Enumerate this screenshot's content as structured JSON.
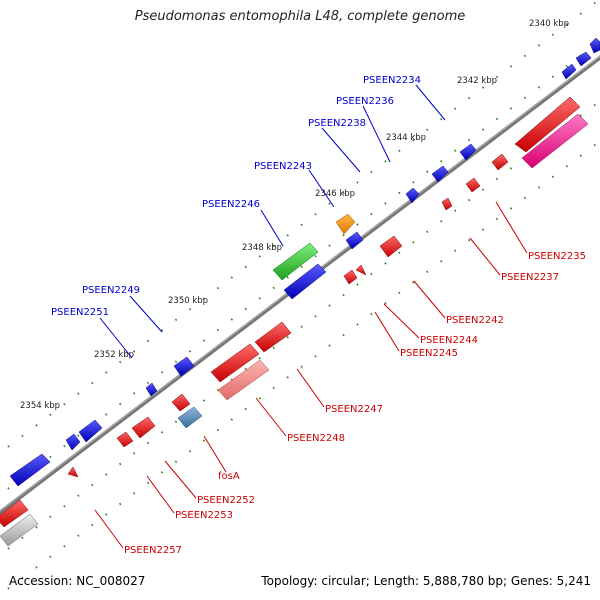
{
  "title": "Pseudomonas entomophila L48, complete genome",
  "footer": {
    "accession": "Accession: NC_008027",
    "topology": "Topology: circular; Length: 5,888,780 bp; Genes: 5,241"
  },
  "colors": {
    "backbone": "#777777",
    "tick": "#2a8a2a",
    "upper_label": "#0000cc",
    "lower_label": "#cc0000"
  },
  "scale_labels": [
    "2340 kbp",
    "2342 kbp",
    "2344 kbp",
    "2346 kbp",
    "2348 kbp",
    "2350 kbp",
    "2352 kbp",
    "2354 kbp"
  ],
  "upper_genes": [
    "PSEEN2234",
    "PSEEN2236",
    "PSEEN2238",
    "PSEEN2243",
    "PSEEN2246",
    "PSEEN2249",
    "PSEEN2251"
  ],
  "lower_genes": [
    "PSEEN2235",
    "PSEEN2237",
    "PSEEN2242",
    "PSEEN2244",
    "PSEEN2245",
    "PSEEN2247",
    "PSEEN2248",
    "fosA",
    "PSEEN2252",
    "PSEEN2253",
    "PSEEN2257"
  ]
}
